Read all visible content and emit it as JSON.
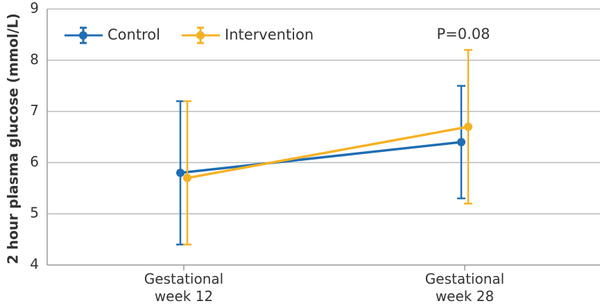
{
  "chart_data": {
    "type": "line",
    "y_label": "2 hour plasma glucose (mmol/L)",
    "categories": [
      "Gestational week 12",
      "Gestational week 28"
    ],
    "series": [
      {
        "name": "Control",
        "color": "#1f6db3",
        "values": [
          5.8,
          6.4
        ],
        "lower": [
          4.4,
          5.3
        ],
        "upper": [
          7.2,
          7.5
        ]
      },
      {
        "name": "Intervention",
        "color": "#f5b122",
        "values": [
          5.7,
          6.7
        ],
        "lower": [
          4.4,
          5.2
        ],
        "upper": [
          7.2,
          8.2
        ]
      }
    ],
    "annotation": "P=0.08",
    "ylim": [
      4,
      9
    ],
    "yticks": [
      4,
      5,
      6,
      7,
      8,
      9
    ],
    "grid": true
  }
}
